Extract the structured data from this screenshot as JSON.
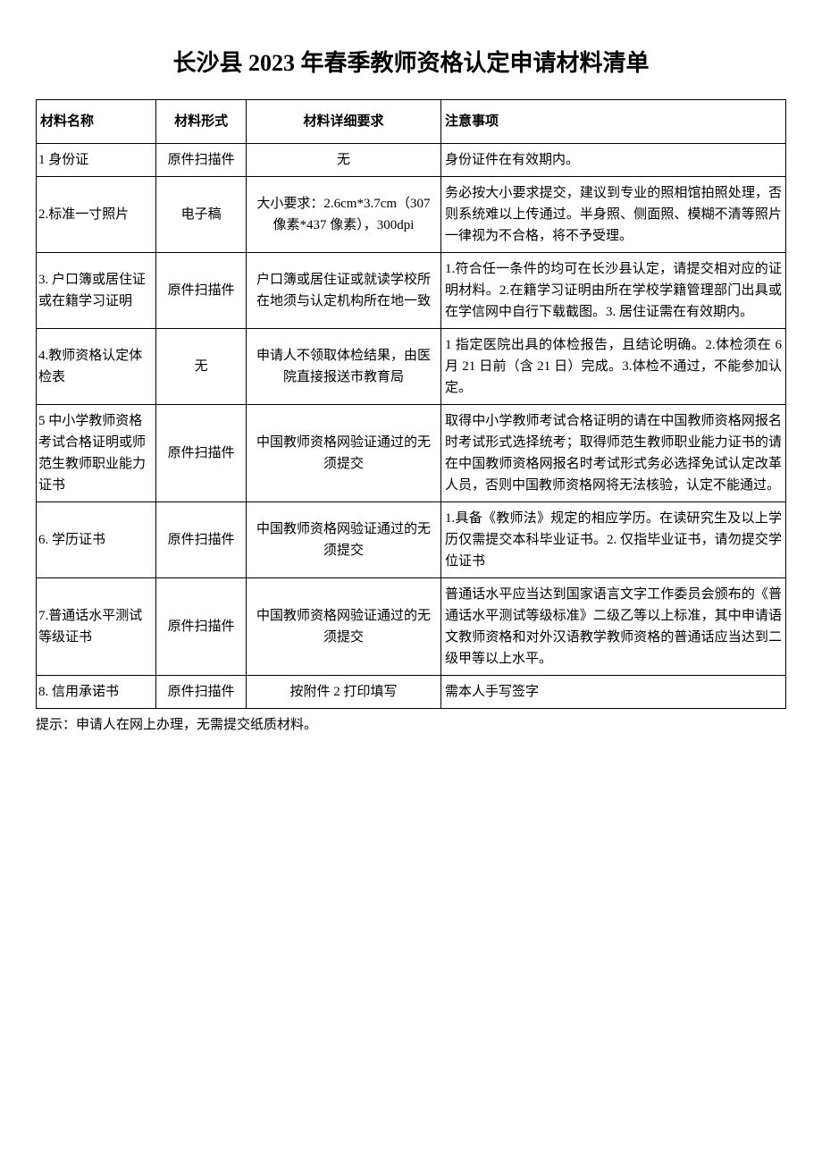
{
  "title": "长沙县 2023 年春季教师资格认定申请材料清单",
  "columns": {
    "name": "材料名称",
    "form": "材料形式",
    "detail": "材料详细要求",
    "note": "注意事项"
  },
  "rows": [
    {
      "name": "1 身份证",
      "form": "原件扫描件",
      "detail": "无",
      "note": "身份证件在有效期内。"
    },
    {
      "name": "2.标准一寸照片",
      "form": "电子稿",
      "detail": "大小要求：2.6cm*3.7cm（307 像素*437 像素），300dpi",
      "note": "务必按大小要求提交，建议到专业的照相馆拍照处理，否则系统难以上传通过。半身照、侧面照、模糊不清等照片一律视为不合格，将不予受理。"
    },
    {
      "name": "3. 户口簿或居住证或在籍学习证明",
      "form": "原件扫描件",
      "detail": "户口簿或居住证或就读学校所在地须与认定机构所在地一致",
      "note": "1.符合任一条件的均可在长沙县认定，请提交相对应的证明材料。2.在籍学习证明由所在学校学籍管理部门出具或在学信网中自行下载截图。3. 居住证需在有效期内。"
    },
    {
      "name": "4.教师资格认定体检表",
      "form": "无",
      "detail": "申请人不领取体检结果，由医院直接报送市教育局",
      "note": "1 指定医院出具的体检报告，且结论明确。2.体检须在 6 月 21 日前（含 21 日）完成。3.体检不通过，不能参加认定。"
    },
    {
      "name": "5 中小学教师资格考试合格证明或师范生教师职业能力证书",
      "form": "原件扫描件",
      "detail": "中国教师资格网验证通过的无须提交",
      "note": "取得中小学教师考试合格证明的请在中国教师资格网报名时考试形式选择统考；取得师范生教师职业能力证书的请在中国教师资格网报名时考试形式务必选择免试认定改革人员，否则中国教师资格网将无法核验，认定不能通过。"
    },
    {
      "name": "6. 学历证书",
      "form": "原件扫描件",
      "detail": "中国教师资格网验证通过的无须提交",
      "note": "1.具备《教师法》规定的相应学历。在读研究生及以上学历仅需提交本科毕业证书。2. 仅指毕业证书，请勿提交学位证书"
    },
    {
      "name": "7.普通话水平测试等级证书",
      "form": "原件扫描件",
      "detail": "中国教师资格网验证通过的无须提交",
      "note": "普通话水平应当达到国家语言文字工作委员会颁布的《普通话水平测试等级标准》二级乙等以上标准，其中申请语文教师资格和对外汉语教学教师资格的普通话应当达到二级甲等以上水平。"
    },
    {
      "name": "8. 信用承诺书",
      "form": "原件扫描件",
      "detail": "按附件 2 打印填写",
      "note": "需本人手写签字"
    }
  ],
  "footnote": "提示：申请人在网上办理，无需提交纸质材料。",
  "style": {
    "page_bg": "#ffffff",
    "text_color": "#000000",
    "border_color": "#000000",
    "title_fontsize": 26,
    "body_fontsize": 15
  }
}
